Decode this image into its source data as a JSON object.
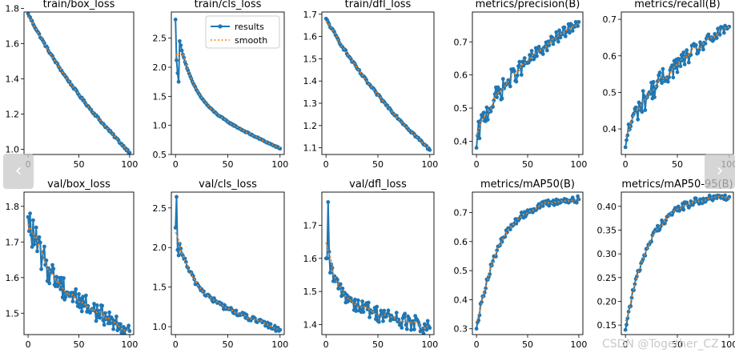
{
  "nav": {
    "prev_symbol": "‹",
    "next_symbol": "›"
  },
  "watermark": "CSDN @Together_CZ",
  "colors": {
    "results": "#1f77b4",
    "smooth": "#ff7f0e",
    "axis": "#000000"
  },
  "chart_data": [
    {
      "type": "line",
      "title": "train/box_loss",
      "xlim": [
        -4,
        104
      ],
      "ylim": [
        0.97,
        1.78
      ],
      "xticks": [
        0,
        50,
        100
      ],
      "yticks": [
        1.0,
        1.2,
        1.4,
        1.6,
        1.8
      ],
      "xtick_labels": [
        "0",
        "50",
        "100"
      ],
      "ytick_labels": [
        "1.0",
        "1.2",
        "1.4",
        "1.6",
        "1.8"
      ],
      "curve": {
        "start": 1.77,
        "end": 0.98,
        "kind": "descending",
        "noise": 0.006
      },
      "legend": null
    },
    {
      "type": "line",
      "title": "train/cls_loss",
      "xlim": [
        -4,
        104
      ],
      "ylim": [
        0.5,
        2.95
      ],
      "xticks": [
        0,
        50,
        100
      ],
      "yticks": [
        0.5,
        1.0,
        1.5,
        2.0,
        2.5
      ],
      "xtick_labels": [
        "0",
        "50",
        "100"
      ],
      "ytick_labels": [
        "0.5",
        "1.0",
        "1.5",
        "2.0",
        "2.5"
      ],
      "curve": {
        "start": 2.82,
        "end": 0.6,
        "kind": "loss-fast",
        "noise": 0.01,
        "points": [
          2.82,
          2.12,
          1.9,
          1.75
        ]
      },
      "legend": {
        "entries": [
          "results",
          "smooth"
        ],
        "location": "top-right"
      }
    },
    {
      "type": "line",
      "title": "train/dfl_loss",
      "xlim": [
        -4,
        104
      ],
      "ylim": [
        1.07,
        1.71
      ],
      "xticks": [
        0,
        50,
        100
      ],
      "yticks": [
        1.1,
        1.2,
        1.3,
        1.4,
        1.5,
        1.6,
        1.7
      ],
      "xtick_labels": [
        "0",
        "50",
        "100"
      ],
      "ytick_labels": [
        "1.1",
        "1.2",
        "1.3",
        "1.4",
        "1.5",
        "1.6",
        "1.7"
      ],
      "curve": {
        "start": 1.68,
        "end": 1.09,
        "kind": "descending",
        "noise": 0.006
      },
      "legend": null
    },
    {
      "type": "line",
      "title": "metrics/precision(B)",
      "xlim": [
        -4,
        104
      ],
      "ylim": [
        0.36,
        0.79
      ],
      "xticks": [
        0,
        50,
        100
      ],
      "yticks": [
        0.4,
        0.5,
        0.6,
        0.7
      ],
      "xtick_labels": [
        "0",
        "50",
        "100"
      ],
      "ytick_labels": [
        "0.4",
        "0.5",
        "0.6",
        "0.7"
      ],
      "curve": {
        "start": 0.38,
        "end": 0.76,
        "kind": "rising",
        "noise": 0.022
      },
      "legend": null
    },
    {
      "type": "line",
      "title": "metrics/recall(B)",
      "xlim": [
        -4,
        104
      ],
      "ylim": [
        0.33,
        0.72
      ],
      "xticks": [
        0,
        50,
        100
      ],
      "yticks": [
        0.4,
        0.5,
        0.6,
        0.7
      ],
      "xtick_labels": [
        "0",
        "50",
        "100"
      ],
      "ytick_labels": [
        "0.4",
        "0.5",
        "0.6",
        "0.7"
      ],
      "curve": {
        "start": 0.35,
        "end": 0.68,
        "kind": "rising",
        "noise": 0.022
      },
      "legend": null
    },
    {
      "type": "line",
      "title": "val/box_loss",
      "xlim": [
        -4,
        104
      ],
      "ylim": [
        1.44,
        1.84
      ],
      "xticks": [
        0,
        50,
        100
      ],
      "yticks": [
        1.5,
        1.6,
        1.7,
        1.8
      ],
      "xtick_labels": [
        "0",
        "50",
        "100"
      ],
      "ytick_labels": [
        "1.5",
        "1.6",
        "1.7",
        "1.8"
      ],
      "curve": {
        "start": 1.77,
        "end": 1.45,
        "kind": "val-loss",
        "noise": 0.03
      },
      "legend": null
    },
    {
      "type": "line",
      "title": "val/cls_loss",
      "xlim": [
        -4,
        104
      ],
      "ylim": [
        0.9,
        2.7
      ],
      "xticks": [
        0,
        50,
        100
      ],
      "yticks": [
        1.0,
        1.5,
        2.0,
        2.5
      ],
      "xtick_labels": [
        "0",
        "50",
        "100"
      ],
      "ytick_labels": [
        "1.0",
        "1.5",
        "2.0",
        "2.5"
      ],
      "curve": {
        "start": 2.25,
        "end": 0.96,
        "kind": "loss-fast",
        "noise": 0.035,
        "points": [
          2.25,
          2.64,
          1.97,
          1.9
        ]
      },
      "legend": null
    },
    {
      "type": "line",
      "title": "val/dfl_loss",
      "xlim": [
        -4,
        104
      ],
      "ylim": [
        1.37,
        1.8
      ],
      "xticks": [
        0,
        50,
        100
      ],
      "yticks": [
        1.4,
        1.5,
        1.6,
        1.7
      ],
      "xtick_labels": [
        "0",
        "50",
        "100"
      ],
      "ytick_labels": [
        "1.4",
        "1.5",
        "1.6",
        "1.7"
      ],
      "curve": {
        "start": 1.6,
        "end": 1.39,
        "kind": "loss-fast",
        "noise": 0.025,
        "points": [
          1.6,
          1.6,
          1.77,
          1.62
        ]
      },
      "legend": null
    },
    {
      "type": "line",
      "title": "metrics/mAP50(B)",
      "xlim": [
        -4,
        104
      ],
      "ylim": [
        0.28,
        0.77
      ],
      "xticks": [
        0,
        50,
        100
      ],
      "yticks": [
        0.3,
        0.4,
        0.5,
        0.6,
        0.7
      ],
      "xtick_labels": [
        "0",
        "50",
        "100"
      ],
      "ytick_labels": [
        "0.3",
        "0.4",
        "0.5",
        "0.6",
        "0.7"
      ],
      "curve": {
        "start": 0.3,
        "end": 0.745,
        "kind": "saturating",
        "noise": 0.012
      },
      "legend": null
    },
    {
      "type": "line",
      "title": "metrics/mAP50-95(B)",
      "xlim": [
        -4,
        104
      ],
      "ylim": [
        0.13,
        0.43
      ],
      "xticks": [
        0,
        50,
        100
      ],
      "yticks": [
        0.15,
        0.2,
        0.25,
        0.3,
        0.35,
        0.4
      ],
      "xtick_labels": [
        "0",
        "50",
        "100"
      ],
      "ytick_labels": [
        "0.15",
        "0.20",
        "0.25",
        "0.30",
        "0.35",
        "0.40"
      ],
      "curve": {
        "start": 0.14,
        "end": 0.42,
        "kind": "saturating",
        "noise": 0.008
      },
      "legend": null
    }
  ]
}
